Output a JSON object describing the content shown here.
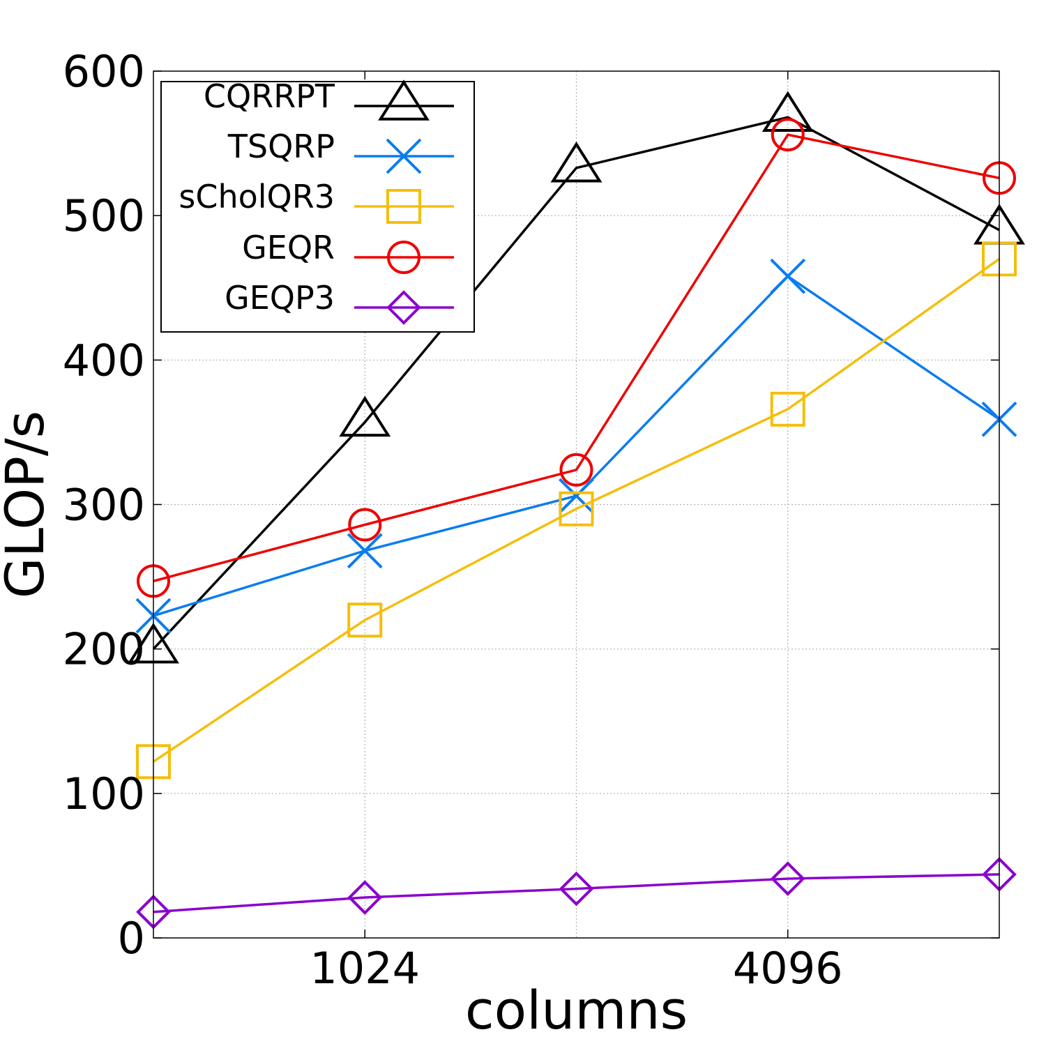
{
  "chart_data": {
    "type": "line",
    "xlabel": "columns",
    "ylabel": "GLOP/s",
    "ylim": [
      0,
      600
    ],
    "yticks": [
      0,
      100,
      200,
      300,
      400,
      500,
      600
    ],
    "x_log2": true,
    "x": [
      512,
      1024,
      2048,
      4096,
      8192
    ],
    "xticks": [
      1024,
      4096
    ],
    "xtick_labels": [
      "1024",
      "4096"
    ],
    "grid": true,
    "legend_position": "top-left",
    "series": [
      {
        "name": "CQRRPT",
        "color": "#000000",
        "marker": "triangle",
        "values": [
          200,
          357,
          533,
          568,
          490
        ]
      },
      {
        "name": "TSQRP",
        "color": "#0a7cf0",
        "marker": "x",
        "values": [
          223,
          268,
          306,
          458,
          359
        ]
      },
      {
        "name": "sCholQR3",
        "color": "#f5be0b",
        "marker": "square",
        "values": [
          122,
          220,
          297,
          366,
          470
        ]
      },
      {
        "name": "GEQR",
        "color": "#ee0000",
        "marker": "circle",
        "values": [
          247,
          286,
          324,
          556,
          526
        ]
      },
      {
        "name": "GEQP3",
        "color": "#8a00cc",
        "marker": "diamond",
        "values": [
          18,
          28,
          34,
          41,
          44
        ]
      }
    ]
  }
}
